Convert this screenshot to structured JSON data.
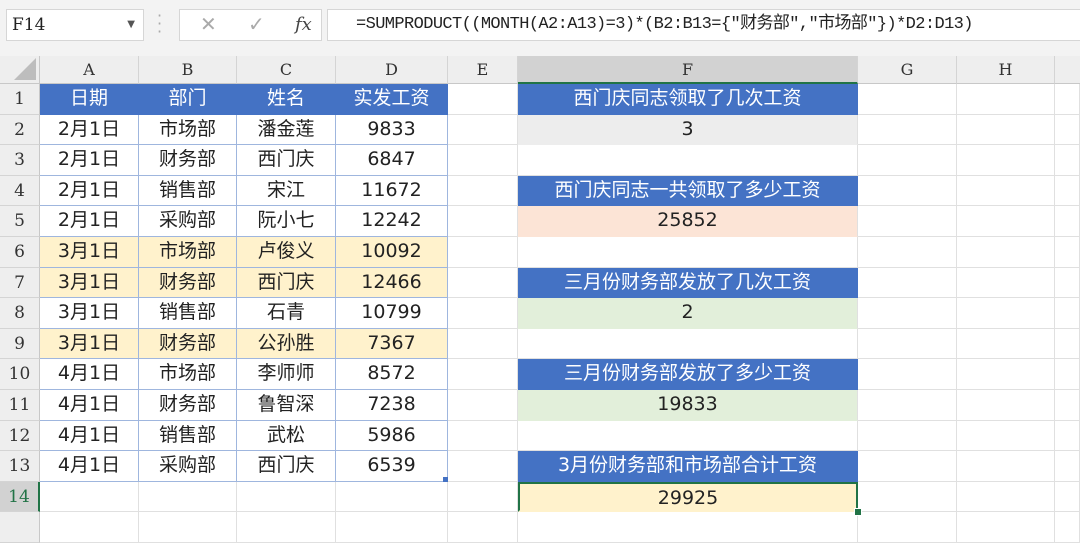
{
  "formula_bar": {
    "name_box": "F14",
    "cancel_icon": "✕",
    "enter_icon": "✓",
    "fx_label": "fx",
    "formula": "=SUMPRODUCT((MONTH(A2:A13)=3)*(B2:B13={\"财务部\",\"市场部\"})*D2:D13)"
  },
  "columns": [
    "A",
    "B",
    "C",
    "D",
    "E",
    "F",
    "G",
    "H"
  ],
  "selected_cell": {
    "column": "F",
    "row": 14
  },
  "colors": {
    "header_fill": "#4472C4",
    "row_highlight": "#FFF2CC",
    "selection": "#217346"
  },
  "table": {
    "headers": [
      "日期",
      "部门",
      "姓名",
      "实发工资"
    ],
    "rows": [
      [
        "2月1日",
        "市场部",
        "潘金莲",
        "9833"
      ],
      [
        "2月1日",
        "财务部",
        "西门庆",
        "6847"
      ],
      [
        "2月1日",
        "销售部",
        "宋江",
        "11672"
      ],
      [
        "2月1日",
        "采购部",
        "阮小七",
        "12242"
      ],
      [
        "3月1日",
        "市场部",
        "卢俊义",
        "10092"
      ],
      [
        "3月1日",
        "财务部",
        "西门庆",
        "12466"
      ],
      [
        "3月1日",
        "销售部",
        "石青",
        "10799"
      ],
      [
        "3月1日",
        "财务部",
        "公孙胜",
        "7367"
      ],
      [
        "4月1日",
        "市场部",
        "李师师",
        "8572"
      ],
      [
        "4月1日",
        "财务部",
        "鲁智深",
        "7238"
      ],
      [
        "4月1日",
        "销售部",
        "武松",
        "5986"
      ],
      [
        "4月1日",
        "采购部",
        "西门庆",
        "6539"
      ]
    ],
    "highlighted_rows": [
      6,
      7,
      9
    ]
  },
  "summary": [
    {
      "title": "西门庆同志领取了几次工资",
      "value": "3",
      "fill": "#EDEDED"
    },
    {
      "title": "西门庆同志一共领取了多少工资",
      "value": "25852",
      "fill": "#FCE4D6"
    },
    {
      "title": "三月份财务部发放了几次工资",
      "value": "2",
      "fill": "#E2EFDA"
    },
    {
      "title": "三月份财务部发放了多少工资",
      "value": "19833",
      "fill": "#E2EFDA"
    },
    {
      "title": "3月份财务部和市场部合计工资",
      "value": "29925",
      "fill": "#FFF2CC"
    }
  ]
}
